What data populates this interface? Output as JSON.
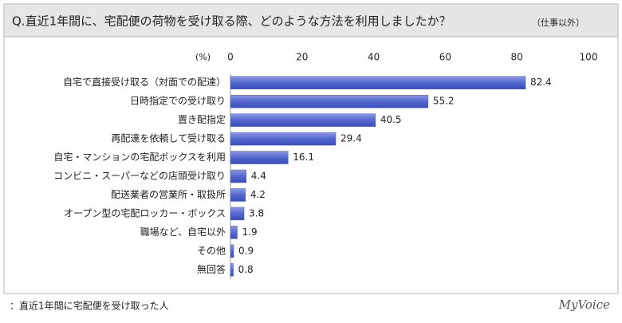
{
  "chart_data": {
    "type": "bar",
    "orientation": "horizontal",
    "title": "Q.直近1年間に、宅配便の荷物を受け取る際、どのような方法を利用しましたか？",
    "title_note": "（仕事以外）",
    "x_label": "(%)",
    "categories": [
      "自宅で直接受け取る（対面での配達）",
      "日時指定での受け取り",
      "置き配指定",
      "再配達を依頼して受け取る",
      "自宅・マンションの宅配ボックスを利用",
      "コンビニ・スーパーなどの店頭受け取り",
      "配送業者の営業所・取扱所",
      "オープン型の宅配ロッカー・ボックス",
      "職場など、自宅以外",
      "その他",
      "無回答"
    ],
    "values": [
      82.4,
      55.2,
      40.5,
      29.4,
      16.1,
      4.4,
      4.2,
      3.8,
      1.9,
      0.9,
      0.8
    ],
    "color": "#4f62c8",
    "xlim": [
      0,
      100
    ],
    "xticks": [
      0,
      20,
      40,
      60,
      80,
      100
    ],
    "grid": false,
    "note": "：直近1年間に宅配便を受け取った人",
    "source": "MyVoice"
  }
}
